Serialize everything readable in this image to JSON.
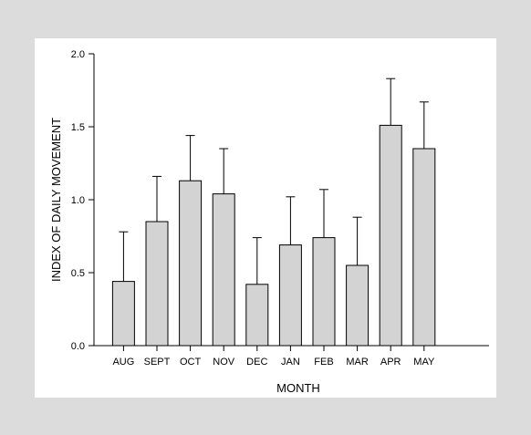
{
  "chart_data": {
    "type": "bar",
    "xlabel": "MONTH",
    "ylabel": "INDEX OF DAILY MOVEMENT",
    "ylim": [
      0,
      2.0
    ],
    "yticks": [
      "0.0",
      "0.5",
      "1.0",
      "1.5",
      "2.0"
    ],
    "categories": [
      "AUG",
      "SEPT",
      "OCT",
      "NOV",
      "DEC",
      "JAN",
      "FEB",
      "MAR",
      "APR",
      "MAY"
    ],
    "values": [
      0.44,
      0.85,
      1.13,
      1.04,
      0.42,
      0.69,
      0.74,
      0.55,
      1.51,
      1.35
    ],
    "error_upper": [
      0.78,
      1.16,
      1.44,
      1.35,
      0.74,
      1.02,
      1.07,
      0.88,
      1.83,
      1.67
    ],
    "grid": false,
    "legend": "none",
    "colors": {
      "bar": "#d3d3d3",
      "plot_background": "#ffffff",
      "outer_background": "#dcdcdc",
      "stroke": "#000000"
    }
  }
}
